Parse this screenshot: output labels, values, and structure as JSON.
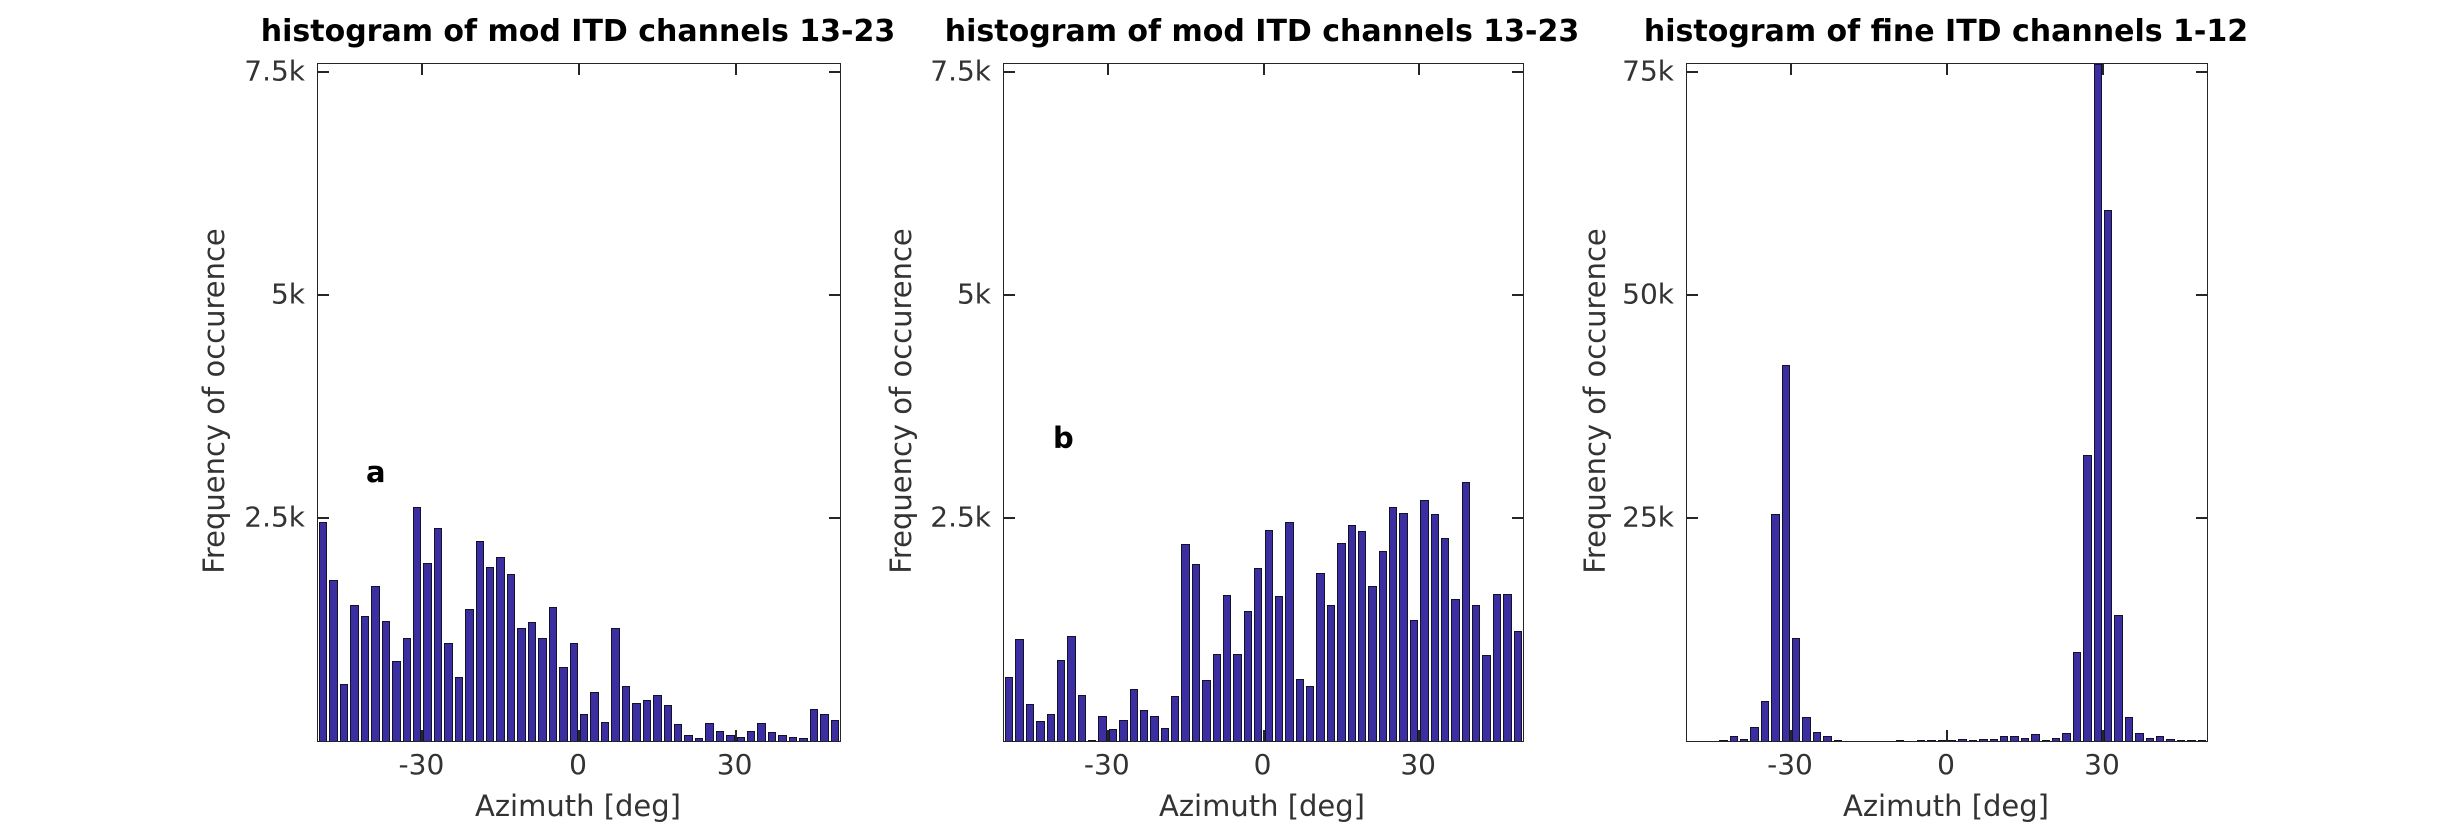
{
  "figure": {
    "background": "#ffffff",
    "bar_fill": "#3b2ea0",
    "bar_edge": "#14122b",
    "axis_color": "#262626",
    "text_color": "#333333",
    "title_color": "#000000"
  },
  "chart_data": [
    {
      "type": "bar",
      "panel_letter": "a",
      "title": "histogram of mod ITD channels 13-23",
      "xlabel": "Azimuth [deg]",
      "ylabel": "Frequency of occurence",
      "xlim": [
        -50,
        50
      ],
      "ylim": [
        0,
        7590
      ],
      "grid": false,
      "legend": "none",
      "bin_width_deg": 2,
      "xticks": [
        {
          "value": -30,
          "label": "-30"
        },
        {
          "value": 0,
          "label": "0"
        },
        {
          "value": 30,
          "label": "30"
        }
      ],
      "yticks": [
        {
          "value": 2500,
          "label": "2.5k"
        },
        {
          "value": 5000,
          "label": "5k"
        },
        {
          "value": 7500,
          "label": "7.5k"
        }
      ],
      "bin_centers": [
        -49,
        -47,
        -45,
        -43,
        -41,
        -39,
        -37,
        -35,
        -33,
        -31,
        -29,
        -27,
        -25,
        -23,
        -21,
        -19,
        -17,
        -15,
        -13,
        -11,
        -9,
        -7,
        -5,
        -3,
        -1,
        1,
        3,
        5,
        7,
        9,
        11,
        13,
        15,
        17,
        19,
        21,
        23,
        25,
        27,
        29,
        31,
        33,
        35,
        37,
        39,
        41,
        43,
        45,
        47,
        49
      ],
      "values": [
        2450,
        1810,
        640,
        1530,
        1400,
        1740,
        1350,
        900,
        1160,
        2620,
        2000,
        2390,
        1100,
        720,
        1480,
        2240,
        1950,
        2060,
        1875,
        1270,
        1330,
        1155,
        1500,
        825,
        1095,
        300,
        550,
        215,
        1270,
        615,
        430,
        460,
        520,
        400,
        195,
        65,
        30,
        200,
        115,
        65,
        50,
        110,
        200,
        100,
        65,
        50,
        30,
        360,
        300,
        230
      ]
    },
    {
      "type": "bar",
      "panel_letter": "b",
      "title": "histogram of mod ITD channels 13-23",
      "xlabel": "Azimuth [deg]",
      "ylabel": "Frequency of occurence",
      "xlim": [
        -50,
        50
      ],
      "ylim": [
        0,
        7590
      ],
      "grid": false,
      "legend": "none",
      "bin_width_deg": 2,
      "xticks": [
        {
          "value": -30,
          "label": "-30"
        },
        {
          "value": 0,
          "label": "0"
        },
        {
          "value": 30,
          "label": "30"
        }
      ],
      "yticks": [
        {
          "value": 2500,
          "label": "2.5k"
        },
        {
          "value": 5000,
          "label": "5k"
        },
        {
          "value": 7500,
          "label": "7.5k"
        }
      ],
      "bin_centers": [
        -49,
        -47,
        -45,
        -43,
        -41,
        -39,
        -37,
        -35,
        -33,
        -31,
        -29,
        -27,
        -25,
        -23,
        -21,
        -19,
        -17,
        -15,
        -13,
        -11,
        -9,
        -7,
        -5,
        -3,
        -1,
        1,
        3,
        5,
        7,
        9,
        11,
        13,
        15,
        17,
        19,
        21,
        23,
        25,
        27,
        29,
        31,
        33,
        35,
        37,
        39,
        41,
        43,
        45,
        47,
        49
      ],
      "values": [
        715,
        1145,
        420,
        220,
        305,
        910,
        1175,
        520,
        15,
        275,
        130,
        230,
        580,
        350,
        285,
        150,
        510,
        2210,
        1980,
        680,
        970,
        1640,
        970,
        1460,
        1940,
        2365,
        1630,
        2460,
        700,
        615,
        1885,
        1525,
        2225,
        2420,
        2350,
        1740,
        2135,
        2620,
        2560,
        1360,
        2700,
        2545,
        2280,
        1595,
        2900,
        1525,
        965,
        1650,
        1650,
        1230
      ]
    },
    {
      "type": "bar",
      "panel_letter": "",
      "title": "histogram of fine ITD channels 1-12",
      "xlabel": "Azimuth [deg]",
      "ylabel": "Frequency of occurence",
      "xlim": [
        -50,
        50
      ],
      "ylim": [
        0,
        75900
      ],
      "grid": false,
      "legend": "none",
      "bin_width_deg": 2,
      "clipped_bar_note": "bar at +29 deg is clipped by the axes top (value >= 75.9k)",
      "xticks": [
        {
          "value": -30,
          "label": "-30"
        },
        {
          "value": 0,
          "label": "0"
        },
        {
          "value": 30,
          "label": "30"
        }
      ],
      "yticks": [
        {
          "value": 25000,
          "label": "25k"
        },
        {
          "value": 50000,
          "label": "50k"
        },
        {
          "value": 75000,
          "label": "75k"
        }
      ],
      "bin_centers": [
        -49,
        -47,
        -45,
        -43,
        -41,
        -39,
        -37,
        -35,
        -33,
        -31,
        -29,
        -27,
        -25,
        -23,
        -21,
        -19,
        -17,
        -15,
        -13,
        -11,
        -9,
        -7,
        -5,
        -3,
        -1,
        1,
        3,
        5,
        7,
        9,
        11,
        13,
        15,
        17,
        19,
        21,
        23,
        25,
        27,
        29,
        31,
        33,
        35,
        37,
        39,
        41,
        43,
        45,
        47,
        49
      ],
      "values": [
        0,
        0,
        0,
        100,
        600,
        270,
        1530,
        4440,
        25400,
        42200,
        11600,
        2650,
        1050,
        520,
        150,
        0,
        0,
        0,
        0,
        0,
        30,
        0,
        30,
        60,
        60,
        120,
        220,
        160,
        280,
        250,
        600,
        560,
        300,
        830,
        150,
        370,
        900,
        9960,
        32100,
        76000,
        59500,
        14100,
        2720,
        900,
        340,
        560,
        190,
        110,
        30,
        30
      ]
    }
  ]
}
